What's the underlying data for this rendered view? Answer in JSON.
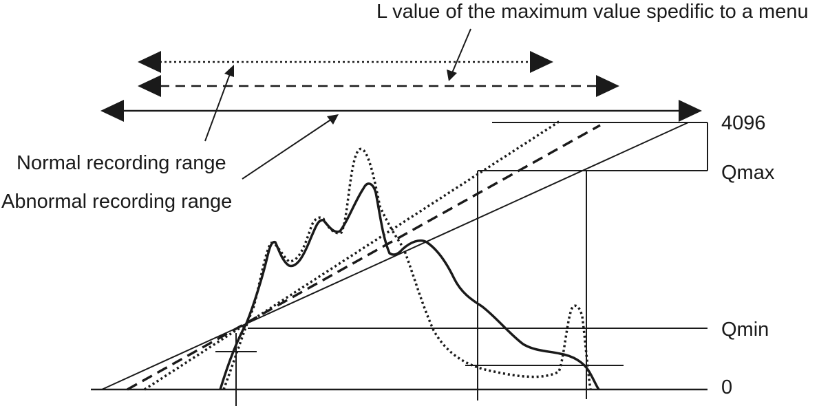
{
  "annotations": {
    "top": "L value of the maximum value spedific to a menu",
    "normal": "Normal recording range",
    "abnormal": "Abnormal recording range"
  },
  "levels": {
    "top": "4096",
    "qmax": "Qmax",
    "qmin": "Qmin",
    "zero": "0"
  },
  "colors": {
    "ink": "#1a1a1a",
    "background": "#ffffff"
  }
}
